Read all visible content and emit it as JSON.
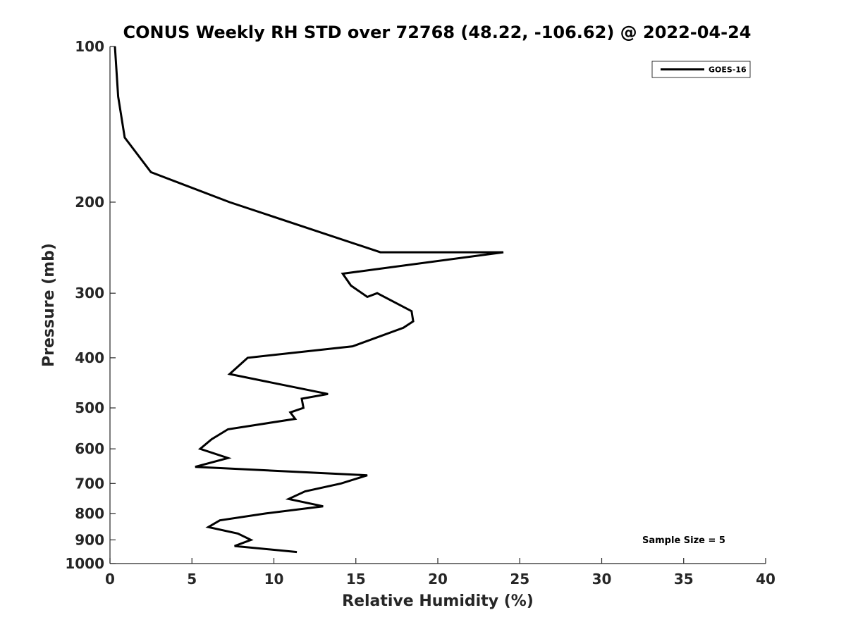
{
  "chart_data": {
    "type": "line",
    "title": "CONUS Weekly RH STD over 72768 (48.22, -106.62) @ 2022-04-24",
    "xlabel": "Relative Humidity (%)",
    "ylabel": "Pressure (mb)",
    "xlim": [
      0,
      40
    ],
    "ylim": [
      100,
      1000
    ],
    "yscale": "log",
    "y_reversed": true,
    "x_ticks": [
      0,
      5,
      10,
      15,
      20,
      25,
      30,
      35,
      40
    ],
    "y_ticks": [
      100,
      200,
      300,
      400,
      500,
      600,
      700,
      800,
      900,
      1000
    ],
    "grid": false,
    "legend_position": "top-right",
    "annotation": "Sample Size = 5",
    "series": [
      {
        "name": "GOES-16",
        "color": "#000000",
        "points": [
          [
            0.3,
            100
          ],
          [
            0.5,
            125
          ],
          [
            0.9,
            150
          ],
          [
            2.5,
            175
          ],
          [
            7.3,
            200
          ],
          [
            16.5,
            250
          ],
          [
            24.0,
            250
          ],
          [
            14.2,
            275
          ],
          [
            14.7,
            290
          ],
          [
            15.7,
            305
          ],
          [
            16.3,
            300
          ],
          [
            18.4,
            325
          ],
          [
            18.5,
            340
          ],
          [
            17.9,
            350
          ],
          [
            14.8,
            380
          ],
          [
            8.4,
            400
          ],
          [
            7.3,
            430
          ],
          [
            13.3,
            470
          ],
          [
            11.7,
            480
          ],
          [
            11.8,
            500
          ],
          [
            11.0,
            510
          ],
          [
            11.3,
            525
          ],
          [
            7.2,
            550
          ],
          [
            6.2,
            575
          ],
          [
            5.5,
            600
          ],
          [
            7.2,
            625
          ],
          [
            5.2,
            650
          ],
          [
            15.7,
            675
          ],
          [
            14.1,
            700
          ],
          [
            11.9,
            725
          ],
          [
            10.9,
            750
          ],
          [
            13.0,
            775
          ],
          [
            9.5,
            800
          ],
          [
            6.7,
            825
          ],
          [
            6.0,
            850
          ],
          [
            7.8,
            875
          ],
          [
            8.6,
            900
          ],
          [
            7.6,
            925
          ],
          [
            11.4,
            950
          ]
        ]
      }
    ]
  }
}
